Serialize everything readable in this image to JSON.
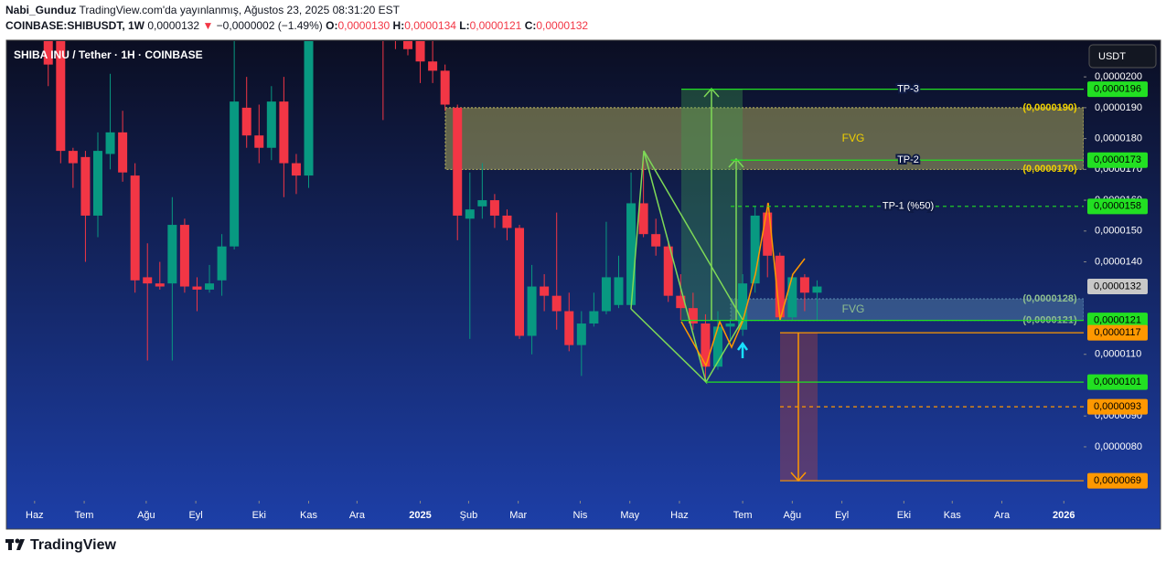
{
  "header": {
    "author": "Nabi_Gunduz",
    "published": "TradingView.com'da yayınlanmış, Ağustos 23, 2025 08:31:20 EST",
    "symbol": "COINBASE:SHIBUSDT, 1W",
    "last": "0,0000132",
    "change_icon": "▼",
    "change": "−0,0000002 (−1.49%)",
    "o_label": "O:",
    "o": "0,0000130",
    "h_label": "H:",
    "h": "0,0000134",
    "l_label": "L:",
    "l": "0,0000121",
    "c_label": "C:",
    "c": "0,0000132"
  },
  "chart_data": {
    "type": "candlestick",
    "title": "SHIBA INU / Tether · 1H · COINBASE",
    "currency": "USDT",
    "up_color": "#089981",
    "down_color": "#f23645",
    "grid": false,
    "ylim": [
      6.25e-06,
      2.116e-05
    ],
    "yticks": [
      {
        "value": 2e-05,
        "label": "0,0000200"
      },
      {
        "value": 1.9e-05,
        "label": "0,0000190"
      },
      {
        "value": 1.8e-05,
        "label": "0,0000180"
      },
      {
        "value": 1.7e-05,
        "label": "0,0000170"
      },
      {
        "value": 1.6e-05,
        "label": "0,0000160"
      },
      {
        "value": 1.5e-05,
        "label": "0,0000150"
      },
      {
        "value": 1.4e-05,
        "label": "0,0000140"
      },
      {
        "value": 1.1e-05,
        "label": "0,0000110"
      },
      {
        "value": 9e-06,
        "label": "0,0000090"
      },
      {
        "value": 8e-06,
        "label": "0,0000080"
      }
    ],
    "xlim": [
      -3.3,
      83.5
    ],
    "xticks": [
      {
        "value": -1.1,
        "label": "Haz"
      },
      {
        "value": 2.9,
        "label": "Tem"
      },
      {
        "value": 7.9,
        "label": "Ağu"
      },
      {
        "value": 11.9,
        "label": "Eyl"
      },
      {
        "value": 17,
        "label": "Eki"
      },
      {
        "value": 21,
        "label": "Kas"
      },
      {
        "value": 24.9,
        "label": "Ara"
      },
      {
        "value": 30,
        "label": "2025"
      },
      {
        "value": 33.9,
        "label": "Şub"
      },
      {
        "value": 37.9,
        "label": "Mar"
      },
      {
        "value": 42.9,
        "label": "Nis"
      },
      {
        "value": 46.9,
        "label": "May"
      },
      {
        "value": 50.9,
        "label": "Haz"
      },
      {
        "value": 56,
        "label": "Tem"
      },
      {
        "value": 60,
        "label": "Ağu"
      },
      {
        "value": 64,
        "label": "Eyl"
      },
      {
        "value": 69,
        "label": "Eki"
      },
      {
        "value": 72.9,
        "label": "Kas"
      },
      {
        "value": 76.9,
        "label": "Ara"
      },
      {
        "value": 81.9,
        "label": "2026"
      }
    ],
    "candles": [
      [
        2.25e-05,
        2.3e-05,
        1.97e-05,
        2.04e-05
      ],
      [
        2.22e-05,
        2.26e-05,
        1.72e-05,
        1.76e-05
      ],
      [
        1.76e-05,
        1.77e-05,
        1.64e-05,
        1.72e-05
      ],
      [
        1.74e-05,
        1.76e-05,
        1.4e-05,
        1.55e-05
      ],
      [
        1.55e-05,
        1.82e-05,
        1.48e-05,
        1.76e-05
      ],
      [
        1.75e-05,
        2.01e-05,
        1.7e-05,
        1.82e-05
      ],
      [
        1.82e-05,
        1.89e-05,
        1.66e-05,
        1.69e-05
      ],
      [
        1.68e-05,
        1.72e-05,
        1.3e-05,
        1.34e-05
      ],
      [
        1.35e-05,
        1.46e-05,
        1.08e-05,
        1.33e-05
      ],
      [
        1.33e-05,
        1.4e-05,
        1.31e-05,
        1.32e-05
      ],
      [
        1.33e-05,
        1.61e-05,
        1.08e-05,
        1.52e-05
      ],
      [
        1.52e-05,
        1.54e-05,
        1.3e-05,
        1.32e-05
      ],
      [
        1.32e-05,
        1.35e-05,
        1.24e-05,
        1.31e-05
      ],
      [
        1.31e-05,
        1.39e-05,
        1.3e-05,
        1.33e-05
      ],
      [
        1.34e-05,
        1.49e-05,
        1.29e-05,
        1.45e-05
      ],
      [
        1.45e-05,
        2.12e-05,
        1.44e-05,
        1.92e-05
      ],
      [
        1.9e-05,
        2e-05,
        1.77e-05,
        1.81e-05
      ],
      [
        1.81e-05,
        1.91e-05,
        1.72e-05,
        1.77e-05
      ],
      [
        1.77e-05,
        1.97e-05,
        1.73e-05,
        1.92e-05
      ],
      [
        1.92e-05,
        2e-05,
        1.61e-05,
        1.72e-05
      ],
      [
        1.72e-05,
        1.75e-05,
        1.62e-05,
        1.68e-05
      ],
      [
        1.68e-05,
        2.2e-05,
        1.64e-05,
        2.15e-05
      ],
      null,
      null,
      null,
      null,
      null,
      [
        2.6e-05,
        2.7e-05,
        1.86e-05,
        2.5e-05
      ],
      [
        2.5e-05,
        2.55e-05,
        2.09e-05,
        2.4e-05
      ],
      [
        2.4e-05,
        2.45e-05,
        2.07e-05,
        2.09e-05
      ],
      [
        2.14e-05,
        2.18e-05,
        1.98e-05,
        2.05e-05
      ],
      [
        2.05e-05,
        2.12e-05,
        1.98e-05,
        2.02e-05
      ],
      [
        2.02e-05,
        2.04e-05,
        1.89e-05,
        1.91e-05
      ],
      [
        1.9e-05,
        1.91e-05,
        1.47e-05,
        1.55e-05
      ],
      [
        1.54e-05,
        1.69e-05,
        1.15e-05,
        1.57e-05
      ],
      [
        1.58e-05,
        1.72e-05,
        1.54e-05,
        1.6e-05
      ],
      [
        1.6e-05,
        1.62e-05,
        1.51e-05,
        1.55e-05
      ],
      [
        1.55e-05,
        1.57e-05,
        1.47e-05,
        1.51e-05
      ],
      [
        1.51e-05,
        1.52e-05,
        1.15e-05,
        1.16e-05
      ],
      [
        1.16e-05,
        1.39e-05,
        1.1e-05,
        1.32e-05
      ],
      [
        1.32e-05,
        1.36e-05,
        1.24e-05,
        1.29e-05
      ],
      [
        1.29e-05,
        1.56e-05,
        1.18e-05,
        1.24e-05
      ],
      [
        1.24e-05,
        1.3e-05,
        1.11e-05,
        1.13e-05
      ],
      [
        1.13e-05,
        1.24e-05,
        1.03e-05,
        1.2e-05
      ],
      [
        1.2e-05,
        1.3e-05,
        1.19e-05,
        1.24e-05
      ],
      [
        1.24e-05,
        1.53e-05,
        1.23e-05,
        1.35e-05
      ],
      [
        1.26e-05,
        1.42e-05,
        1.25e-05,
        1.35e-05
      ],
      [
        1.26e-05,
        1.69e-05,
        1.25e-05,
        1.59e-05
      ],
      [
        1.59e-05,
        1.73e-05,
        1.48e-05,
        1.49e-05
      ],
      [
        1.49e-05,
        1.54e-05,
        1.42e-05,
        1.45e-05
      ],
      [
        1.45e-05,
        1.46e-05,
        1.27e-05,
        1.29e-05
      ],
      [
        1.29e-05,
        1.36e-05,
        1.21e-05,
        1.25e-05
      ],
      [
        1.25e-05,
        1.3e-05,
        1.18e-05,
        1.2e-05
      ],
      [
        1.2e-05,
        1.23e-05,
        1.01e-05,
        1.06e-05
      ],
      [
        1.06e-05,
        1.24e-05,
        1.05e-05,
        1.19e-05
      ],
      [
        1.19e-05,
        1.21e-05,
        1.15e-05,
        1.2e-05
      ],
      [
        1.18e-05,
        1.36e-05,
        1.16e-05,
        1.33e-05
      ],
      [
        1.33e-05,
        1.58e-05,
        1.3e-05,
        1.55e-05
      ],
      [
        1.56e-05,
        1.59e-05,
        1.35e-05,
        1.42e-05
      ],
      [
        1.42e-05,
        1.43e-05,
        1.21e-05,
        1.22e-05
      ],
      [
        1.22e-05,
        1.36e-05,
        1.21e-05,
        1.35e-05
      ],
      [
        1.35e-05,
        1.36e-05,
        1.24e-05,
        1.3e-05
      ],
      [
        1.3e-05,
        1.34e-05,
        1.21e-05,
        1.32e-05
      ]
    ],
    "fvg_zones": [
      {
        "name": "FVG",
        "top": 1.9e-05,
        "bottom": 1.7e-05,
        "top_label": "(0,0000190)",
        "bottom_label": "(0,0000170)",
        "color": "#c8c060",
        "label_color": "#f0d000"
      },
      {
        "name": "FVG",
        "top": 1.28e-05,
        "bottom": 1.21e-05,
        "top_label": "(0,0000128)",
        "bottom_label": "(0,0000121)",
        "color": "#5a8ab0",
        "label_color": "#8fbf8f"
      }
    ],
    "price_levels": [
      {
        "name": "TP-3",
        "value": 1.96e-05,
        "label": "0,0000196",
        "color": "#22e022"
      },
      {
        "name": "TP-2",
        "value": 1.73e-05,
        "label": "0,0000173",
        "color": "#22e022"
      },
      {
        "name": "TP-1 (%50)",
        "value": 1.58e-05,
        "label": "0,0000158",
        "color": "#22e022",
        "dashed": true
      },
      {
        "value": 1.21e-05,
        "label": "0,0000121",
        "color": "#22e022"
      },
      {
        "value": 1.17e-05,
        "label": "0,0000117",
        "color": "#ff9800"
      },
      {
        "value": 1.01e-05,
        "label": "0,0000101",
        "color": "#22e022"
      },
      {
        "value": 9.3e-06,
        "label": "0,0000093",
        "color": "#ff9800",
        "dashed": true
      },
      {
        "value": 6.9e-06,
        "label": "0,0000069",
        "color": "#ff9800"
      }
    ],
    "last_price": {
      "value": 1.32e-05,
      "label": "0,0000132",
      "color": "#c8c8c8"
    }
  },
  "footer": {
    "brand": "TradingView"
  }
}
